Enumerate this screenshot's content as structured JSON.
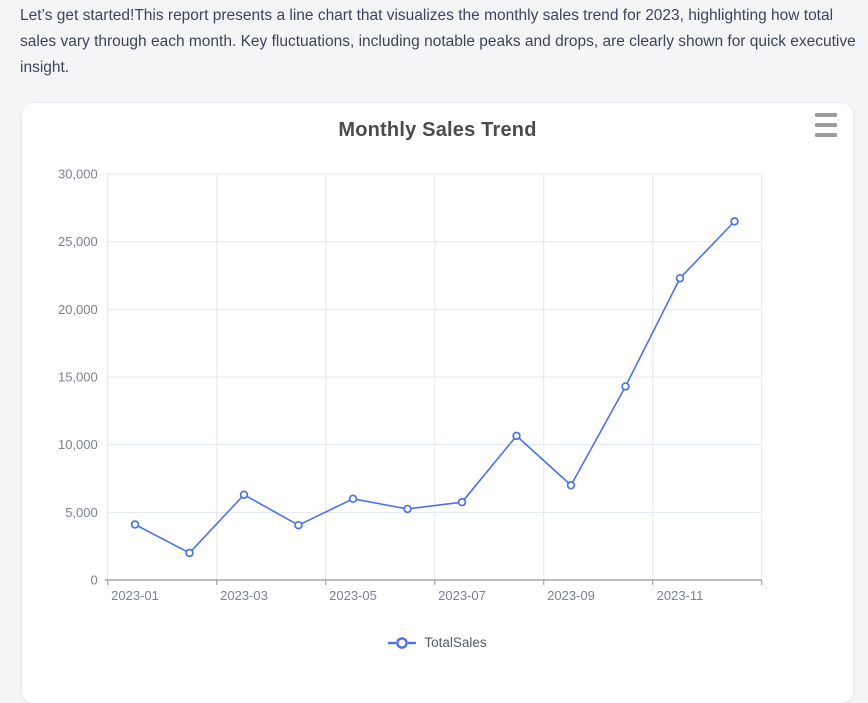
{
  "intro": {
    "text": "Let’s get started!This report presents a line chart that visualizes the monthly sales trend for 2023, highlighting how total sales vary through each month. Key fluctuations, including notable peaks and drops, are clearly shown for quick executive insight."
  },
  "card": {
    "title": "Monthly Sales Trend",
    "menu_icon": "hamburger-menu-icon"
  },
  "legend": {
    "label": "TotalSales"
  },
  "colors": {
    "accent": "#4D72E8",
    "grid_line": "#e3e7f0",
    "axis_line": "#8f949c",
    "tick_label": "#7d828c",
    "title": "#4b4b4b",
    "intro_text": "#3c4559",
    "legend_text": "#555b63",
    "menu_icon": "#9c9c9c",
    "page_bg": "#f4f5f7",
    "card_bg": "#ffffff",
    "marker_fill": "#ffffff"
  },
  "chart_data": {
    "type": "line",
    "title": "Monthly Sales Trend",
    "categories": [
      "2023-01",
      "2023-02",
      "2023-03",
      "2023-04",
      "2023-05",
      "2023-06",
      "2023-07",
      "2023-08",
      "2023-09",
      "2023-10",
      "2023-11",
      "2023-12"
    ],
    "series": [
      {
        "name": "TotalSales",
        "values": [
          4100,
          2000,
          6300,
          4050,
          6000,
          5250,
          5750,
          10650,
          7000,
          14300,
          22300,
          26500
        ]
      }
    ],
    "x_tick_labels_shown": [
      "2023-01",
      "2023-03",
      "2023-05",
      "2023-07",
      "2023-09",
      "2023-11"
    ],
    "y_tick_labels": [
      "0",
      "5,000",
      "10,000",
      "15,000",
      "20,000",
      "25,000",
      "30,000"
    ],
    "xlabel": "",
    "ylabel": "",
    "ylim": [
      0,
      30000
    ],
    "grid": true,
    "legend_position": "bottom",
    "marker": "hollow-circle"
  }
}
